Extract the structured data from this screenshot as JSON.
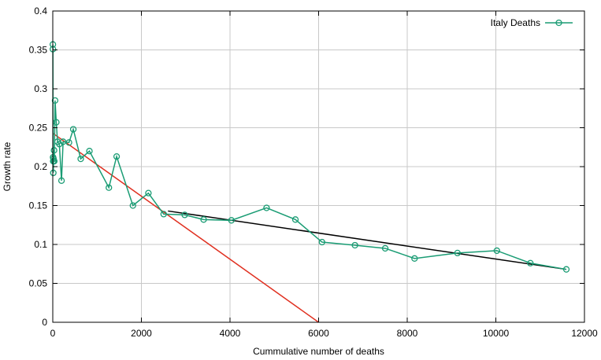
{
  "chart_data": {
    "type": "line",
    "xlabel": "Cummulative number of deaths",
    "ylabel": "Growth rate",
    "xlim": [
      0,
      12000
    ],
    "ylim": [
      0,
      0.4
    ],
    "x_ticks": [
      "0",
      "2000",
      "4000",
      "6000",
      "8000",
      "10000",
      "12000"
    ],
    "y_ticks": [
      "0",
      "0.05",
      "0.1",
      "0.15",
      "0.2",
      "0.25",
      "0.3",
      "0.35",
      "0.4"
    ],
    "grid": true,
    "legend_position": "top-right",
    "series": [
      {
        "name": "Italy Deaths",
        "color": "#1a9c74",
        "marker": "open-circle",
        "points": [
          [
            2,
            0.357
          ],
          [
            3,
            0.351
          ],
          [
            7,
            0.212
          ],
          [
            10,
            0.207
          ],
          [
            12,
            0.192
          ],
          [
            17,
            0.21
          ],
          [
            21,
            0.207
          ],
          [
            29,
            0.221
          ],
          [
            34,
            0.207
          ],
          [
            52,
            0.285
          ],
          [
            79,
            0.257
          ],
          [
            107,
            0.232
          ],
          [
            148,
            0.229
          ],
          [
            197,
            0.182
          ],
          [
            233,
            0.232
          ],
          [
            366,
            0.231
          ],
          [
            463,
            0.248
          ],
          [
            631,
            0.21
          ],
          [
            827,
            0.22
          ],
          [
            1266,
            0.173
          ],
          [
            1441,
            0.213
          ],
          [
            1809,
            0.15
          ],
          [
            2158,
            0.166
          ],
          [
            2503,
            0.139
          ],
          [
            2978,
            0.138
          ],
          [
            3405,
            0.132
          ],
          [
            4032,
            0.131
          ],
          [
            4825,
            0.147
          ],
          [
            5476,
            0.132
          ],
          [
            6077,
            0.103
          ],
          [
            6820,
            0.099
          ],
          [
            7503,
            0.095
          ],
          [
            8165,
            0.082
          ],
          [
            9134,
            0.089
          ],
          [
            10023,
            0.092
          ],
          [
            10779,
            0.076
          ],
          [
            11591,
            0.068
          ]
        ]
      }
    ],
    "fit_lines": [
      {
        "color": "#e03020",
        "points": [
          [
            0,
            0.243
          ],
          [
            6000,
            0
          ]
        ]
      },
      {
        "color": "#000000",
        "points": [
          [
            2600,
            0.143
          ],
          [
            11591,
            0.068
          ]
        ]
      }
    ]
  }
}
